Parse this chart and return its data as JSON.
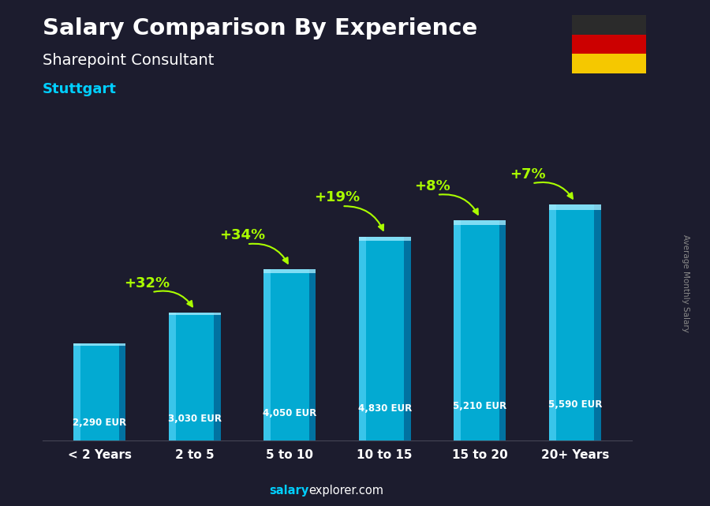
{
  "title": "Salary Comparison By Experience",
  "subtitle": "Sharepoint Consultant",
  "city": "Stuttgart",
  "ylabel": "Average Monthly Salary",
  "categories": [
    "< 2 Years",
    "2 to 5",
    "5 to 10",
    "10 to 15",
    "15 to 20",
    "20+ Years"
  ],
  "values": [
    2290,
    3030,
    4050,
    4830,
    5210,
    5590
  ],
  "value_labels": [
    "2,290 EUR",
    "3,030 EUR",
    "4,050 EUR",
    "4,830 EUR",
    "5,210 EUR",
    "5,590 EUR"
  ],
  "pct_changes": [
    null,
    "+32%",
    "+34%",
    "+19%",
    "+8%",
    "+7%"
  ],
  "pct_y_offsets": [
    0,
    480,
    600,
    720,
    610,
    500
  ],
  "bar_color_face": "#00bfea",
  "bar_color_light": "#66ddff",
  "bar_color_dark": "#005588",
  "bar_color_top": "#aaeeff",
  "bg_color": "#1c1c2e",
  "title_color": "#ffffff",
  "subtitle_color": "#ffffff",
  "city_color": "#00cfff",
  "value_color": "#ffffff",
  "pct_color": "#aaff00",
  "xlabel_color": "#ffffff",
  "watermark_color": "#888888",
  "flag_colors": [
    "#2b2b2b",
    "#cc0000",
    "#f5c800"
  ],
  "ylim": [
    0,
    7200
  ],
  "bar_width": 0.55,
  "footer_salary_color": "#00cfff",
  "footer_explorer_color": "#ffffff"
}
